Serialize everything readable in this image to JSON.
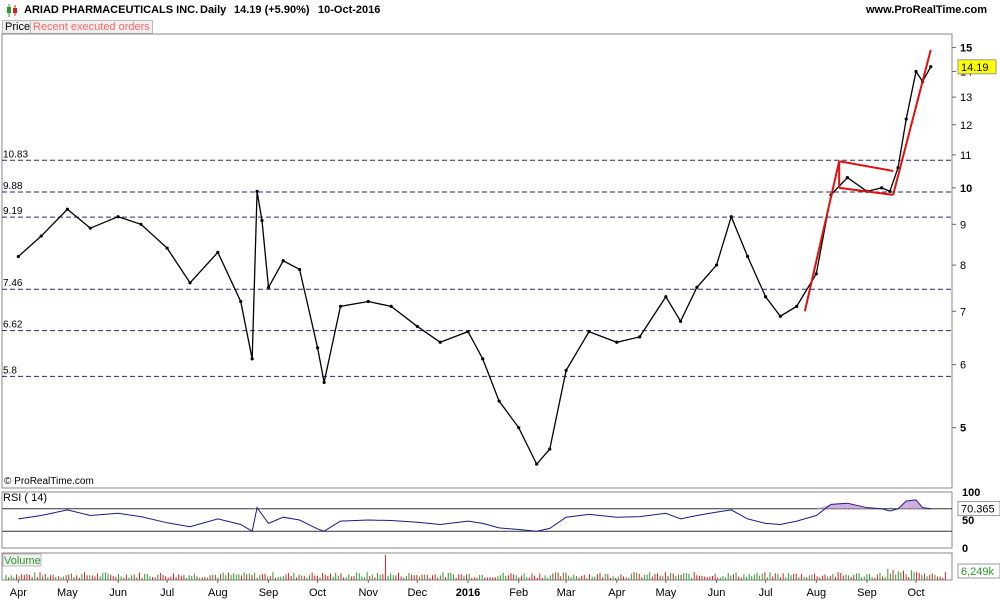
{
  "header": {
    "title": "ARIAD PHARMACEUTICALS INC.",
    "period": "Daily",
    "price_change": "14.19 (+5.90%)",
    "date": "10-Oct-2016",
    "site": "www.ProRealTime.com"
  },
  "toolbar": {
    "price_tab": "Price",
    "orders_tab": "Recent executed orders"
  },
  "watermark": "© ProRealTime.com",
  "colors": {
    "up": "#2a9a2a",
    "down": "#cc2222",
    "accent_trend": "#e01010",
    "grid": "#2a2a7a",
    "rsi_line": "#1a1a8a",
    "rsi_fill": "#c8a0d8",
    "last_price_bg": "#ffff00"
  },
  "chart_data": [
    {
      "type": "line",
      "name": "price",
      "title": "ARIAD PHARMACEUTICALS INC.",
      "y_scale": "log",
      "ylim": [
        4.2,
        15.6
      ],
      "y_ticks": [
        15,
        14,
        13,
        12,
        11,
        10,
        9,
        8,
        7,
        6,
        5
      ],
      "x_ticks": [
        "Apr",
        "May",
        "Jun",
        "Jul",
        "Aug",
        "Sep",
        "Oct",
        "Nov",
        "Dec",
        "2016",
        "Feb",
        "Mar",
        "Apr",
        "May",
        "Jun",
        "Jul",
        "Aug",
        "Sep",
        "Oct"
      ],
      "levels": [
        10.83,
        9.88,
        9.19,
        7.46,
        6.62,
        5.8
      ],
      "last_price": "14.19",
      "x": [
        "2015-04-01",
        "2015-04-15",
        "2015-05-01",
        "2015-05-15",
        "2015-06-01",
        "2015-06-15",
        "2015-07-01",
        "2015-07-15",
        "2015-08-01",
        "2015-08-15",
        "2015-08-22",
        "2015-08-25",
        "2015-08-28",
        "2015-09-01",
        "2015-09-10",
        "2015-09-20",
        "2015-10-01",
        "2015-10-05",
        "2015-10-15",
        "2015-11-01",
        "2015-11-15",
        "2015-12-01",
        "2015-12-15",
        "2016-01-01",
        "2016-01-10",
        "2016-01-20",
        "2016-02-01",
        "2016-02-12",
        "2016-02-20",
        "2016-03-01",
        "2016-03-15",
        "2016-04-01",
        "2016-04-15",
        "2016-05-01",
        "2016-05-10",
        "2016-05-20",
        "2016-06-01",
        "2016-06-10",
        "2016-06-20",
        "2016-07-01",
        "2016-07-10",
        "2016-07-20",
        "2016-08-01",
        "2016-08-10",
        "2016-08-20",
        "2016-09-01",
        "2016-09-10",
        "2016-09-15",
        "2016-09-20",
        "2016-09-25",
        "2016-10-01",
        "2016-10-05",
        "2016-10-10"
      ],
      "values": [
        8.2,
        8.7,
        9.4,
        8.9,
        9.2,
        9.0,
        8.4,
        7.6,
        8.3,
        7.2,
        6.1,
        9.9,
        9.1,
        7.5,
        8.1,
        7.9,
        6.3,
        5.7,
        7.1,
        7.2,
        7.1,
        6.7,
        6.4,
        6.6,
        6.1,
        5.4,
        5.0,
        4.5,
        4.7,
        5.9,
        6.6,
        6.4,
        6.5,
        7.3,
        6.8,
        7.5,
        8.0,
        9.2,
        8.2,
        7.3,
        6.9,
        7.1,
        7.8,
        9.8,
        10.3,
        9.9,
        10.0,
        9.9,
        10.6,
        12.2,
        14.0,
        13.6,
        14.19
      ],
      "trend_lines": [
        {
          "from": [
            "2016-07-25",
            7.0
          ],
          "to": [
            "2016-08-15",
            10.8
          ]
        },
        {
          "from": [
            "2016-08-15",
            10.8
          ],
          "to": [
            "2016-09-17",
            10.5
          ]
        },
        {
          "from": [
            "2016-08-15",
            10.0
          ],
          "to": [
            "2016-09-17",
            9.8
          ]
        },
        {
          "from": [
            "2016-09-17",
            9.8
          ],
          "to": [
            "2016-10-10",
            14.9
          ]
        }
      ]
    },
    {
      "type": "line",
      "name": "rsi",
      "title": "RSI ( 14)",
      "ylim": [
        0,
        100
      ],
      "y_ticks": [
        100,
        50,
        0
      ],
      "levels": [
        70,
        30
      ],
      "last_value": "70.365",
      "x": [
        "2015-04-01",
        "2015-04-15",
        "2015-05-01",
        "2015-05-15",
        "2015-06-01",
        "2015-06-15",
        "2015-07-01",
        "2015-07-15",
        "2015-08-01",
        "2015-08-15",
        "2015-08-22",
        "2015-08-25",
        "2015-08-28",
        "2015-09-01",
        "2015-09-10",
        "2015-09-20",
        "2015-10-01",
        "2015-10-05",
        "2015-10-15",
        "2015-11-01",
        "2015-11-15",
        "2015-12-01",
        "2015-12-15",
        "2016-01-01",
        "2016-01-10",
        "2016-01-20",
        "2016-02-01",
        "2016-02-12",
        "2016-02-20",
        "2016-03-01",
        "2016-03-15",
        "2016-04-01",
        "2016-04-15",
        "2016-05-01",
        "2016-05-10",
        "2016-05-20",
        "2016-06-01",
        "2016-06-10",
        "2016-06-20",
        "2016-07-01",
        "2016-07-10",
        "2016-07-20",
        "2016-08-01",
        "2016-08-10",
        "2016-08-20",
        "2016-09-01",
        "2016-09-10",
        "2016-09-15",
        "2016-09-20",
        "2016-09-25",
        "2016-10-01",
        "2016-10-05",
        "2016-10-10"
      ],
      "values": [
        52,
        58,
        68,
        58,
        62,
        56,
        45,
        38,
        52,
        42,
        30,
        72,
        60,
        44,
        55,
        50,
        34,
        30,
        48,
        50,
        49,
        46,
        42,
        48,
        44,
        36,
        33,
        30,
        35,
        55,
        60,
        55,
        56,
        62,
        52,
        58,
        64,
        68,
        52,
        44,
        42,
        48,
        58,
        78,
        80,
        72,
        70,
        66,
        70,
        84,
        86,
        72,
        70
      ]
    },
    {
      "type": "bar",
      "name": "volume",
      "title": "Volume",
      "last_value": "6,249k"
    }
  ]
}
